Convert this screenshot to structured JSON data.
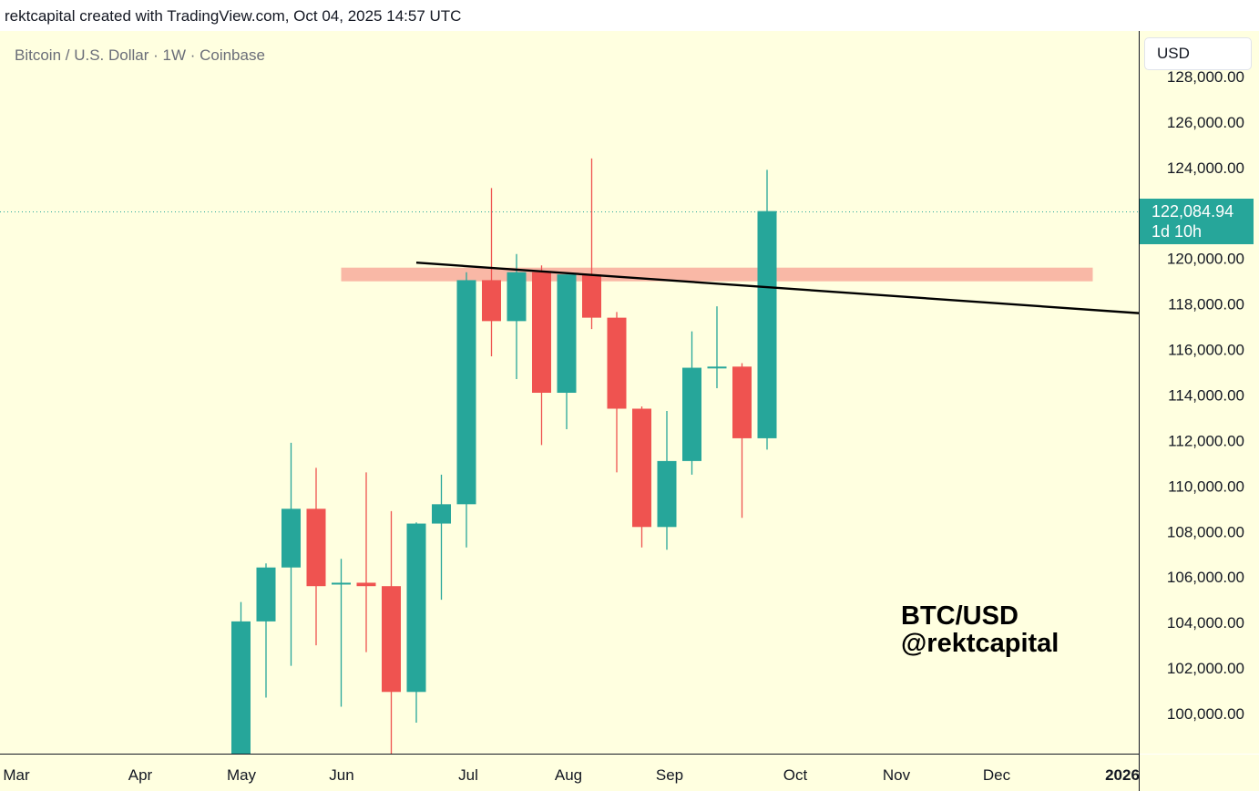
{
  "header": {
    "attribution": "rektcapital created with TradingView.com, Oct 04, 2025 14:57 UTC"
  },
  "chart_header": {
    "symbol_description": "Bitcoin / U.S. Dollar · 1W · Coinbase",
    "currency_button": "USD"
  },
  "current_price": {
    "value": "122,084.94",
    "countdown": "1d 10h"
  },
  "watermark": {
    "line1": "BTC/USD",
    "line2": "@rektcapital"
  },
  "colors": {
    "background": "#ffffe0",
    "up": "#26a69a",
    "down": "#ef5350",
    "resistance_zone": "#f9b8a6",
    "trendline": "#000000",
    "axis_text": "#131722"
  },
  "chart_data": {
    "type": "candlestick",
    "interval": "1W",
    "x_ticks": [
      "Mar",
      "Apr",
      "May",
      "Jun",
      "Jul",
      "Aug",
      "Sep",
      "Oct",
      "Nov",
      "Dec",
      "2026"
    ],
    "y_ticks": [
      100000,
      102000,
      104000,
      106000,
      108000,
      110000,
      112000,
      114000,
      116000,
      118000,
      120000,
      122000,
      124000,
      126000,
      128000
    ],
    "y_tick_labels": [
      "100,000.00",
      "102,000.00",
      "104,000.00",
      "106,000.00",
      "108,000.00",
      "110,000.00",
      "112,000.00",
      "114,000.00",
      "116,000.00",
      "118,000.00",
      "120,000.00",
      "",
      "124,000.00",
      "126,000.00",
      "128,000.00"
    ],
    "ylim": [
      98000,
      128000
    ],
    "candles": [
      {
        "date": "2025-04-28",
        "open": 97500,
        "high": 104900,
        "low": 96500,
        "close": 104050
      },
      {
        "date": "2025-05-05",
        "open": 104050,
        "high": 106600,
        "low": 100700,
        "close": 106420
      },
      {
        "date": "2025-05-12",
        "open": 106420,
        "high": 111900,
        "low": 102100,
        "close": 109000
      },
      {
        "date": "2025-05-19",
        "open": 109000,
        "high": 110800,
        "low": 103000,
        "close": 105600
      },
      {
        "date": "2025-05-26",
        "open": 105700,
        "high": 106800,
        "low": 100300,
        "close": 105750
      },
      {
        "date": "2025-06-02",
        "open": 105750,
        "high": 110600,
        "low": 102700,
        "close": 105600
      },
      {
        "date": "2025-06-09",
        "open": 105600,
        "high": 108900,
        "low": 98100,
        "close": 100950
      },
      {
        "date": "2025-06-16",
        "open": 100950,
        "high": 108400,
        "low": 99600,
        "close": 108350
      },
      {
        "date": "2025-06-23",
        "open": 108350,
        "high": 110500,
        "low": 105000,
        "close": 109200
      },
      {
        "date": "2025-06-30",
        "open": 109200,
        "high": 119400,
        "low": 107300,
        "close": 119050
      },
      {
        "date": "2025-07-07",
        "open": 119050,
        "high": 123100,
        "low": 115700,
        "close": 117250
      },
      {
        "date": "2025-07-14",
        "open": 117250,
        "high": 120200,
        "low": 114700,
        "close": 119400
      },
      {
        "date": "2025-07-21",
        "open": 119400,
        "high": 119700,
        "low": 111800,
        "close": 114100
      },
      {
        "date": "2025-07-28",
        "open": 114100,
        "high": 119300,
        "low": 112500,
        "close": 119300
      },
      {
        "date": "2025-08-04",
        "open": 119300,
        "high": 124400,
        "low": 116900,
        "close": 117400
      },
      {
        "date": "2025-08-11",
        "open": 117400,
        "high": 117650,
        "low": 110600,
        "close": 113400
      },
      {
        "date": "2025-08-18",
        "open": 113400,
        "high": 113500,
        "low": 107300,
        "close": 108200
      },
      {
        "date": "2025-08-25",
        "open": 108200,
        "high": 113300,
        "low": 107200,
        "close": 111100
      },
      {
        "date": "2025-09-01",
        "open": 111100,
        "high": 116800,
        "low": 110500,
        "close": 115200
      },
      {
        "date": "2025-09-08",
        "open": 115200,
        "high": 117900,
        "low": 114300,
        "close": 115250
      },
      {
        "date": "2025-09-15",
        "open": 115250,
        "high": 115400,
        "low": 108600,
        "close": 112100
      },
      {
        "date": "2025-09-22",
        "open": 112100,
        "high": 123900,
        "low": 111600,
        "close": 122084.94
      }
    ],
    "last_price": 122084.94,
    "resistance_zone": {
      "low": 119000,
      "high": 119600,
      "from": "2025-05-26",
      "to": "2025-12-22"
    },
    "trendline": {
      "start": {
        "date": "2025-06-16",
        "price": 119820
      },
      "end": {
        "date": "2025-12-29",
        "price": 117600
      }
    },
    "grid": false,
    "legend": "none"
  }
}
